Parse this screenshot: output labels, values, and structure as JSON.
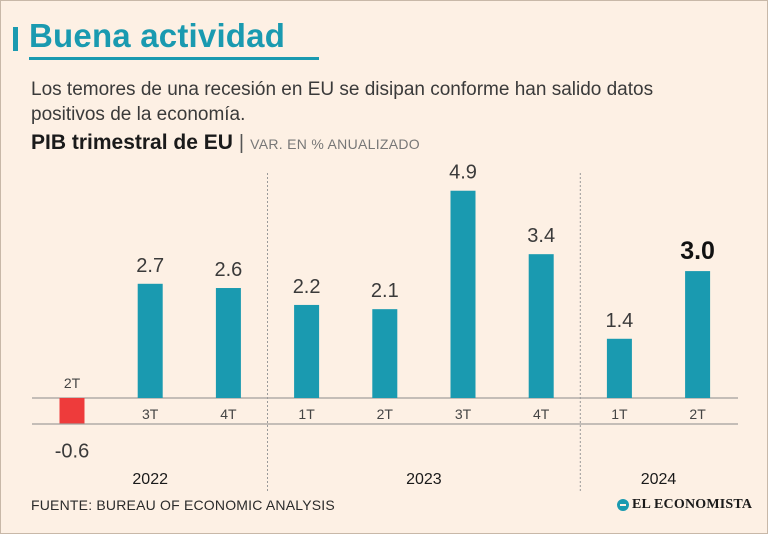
{
  "header": {
    "title": "Buena actividad",
    "subtitle": "Los temores de una recesión en EU se disipan conforme han salido datos positivos de la economía."
  },
  "chart_head": {
    "title": "PIB trimestral de EU",
    "separator": "|",
    "unit": "VAR. EN % ANUALIZADO"
  },
  "footer": {
    "source": "FUENTE: BUREAU OF ECONOMIC ANALYSIS",
    "brand": "EL ECONOMISTA"
  },
  "colors": {
    "accent": "#1a9ab0",
    "negative": "#ee3b3b",
    "background": "#fdf0e4"
  },
  "chart_data": {
    "type": "bar",
    "title": "PIB trimestral de EU",
    "ylabel": "VAR. EN % ANUALIZADO",
    "ylim": [
      -0.6,
      4.9
    ],
    "categories": [
      "2T",
      "3T",
      "4T",
      "1T",
      "2T",
      "3T",
      "4T",
      "1T",
      "2T"
    ],
    "groups": [
      {
        "label": "2022",
        "categories": [
          "2T",
          "3T",
          "4T"
        ]
      },
      {
        "label": "2023",
        "categories": [
          "1T",
          "2T",
          "3T",
          "4T"
        ]
      },
      {
        "label": "2024",
        "categories": [
          "1T",
          "2T"
        ]
      }
    ],
    "values": [
      -0.6,
      2.7,
      2.6,
      2.2,
      2.1,
      4.9,
      3.4,
      1.4,
      3.0
    ],
    "value_labels": [
      "-0.6",
      "2.7",
      "2.6",
      "2.2",
      "2.1",
      "4.9",
      "3.4",
      "1.4",
      "3.0"
    ],
    "highlight_index": 8
  }
}
